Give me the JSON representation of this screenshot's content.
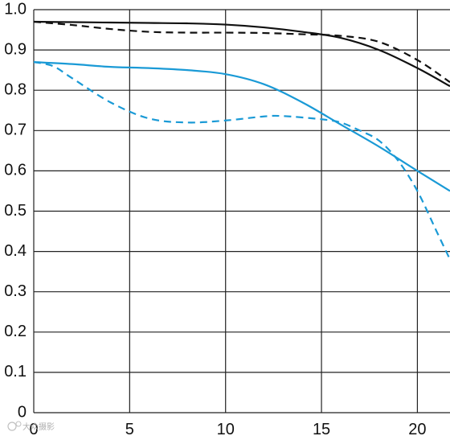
{
  "chart_data": {
    "type": "line",
    "title": "",
    "xlabel": "",
    "ylabel": "",
    "xlim": [
      0,
      21.7
    ],
    "ylim": [
      0,
      1.0
    ],
    "x_ticks": [
      0,
      5,
      10,
      15,
      20
    ],
    "x_tick_labels": [
      "0",
      "5",
      "10",
      "15",
      "20"
    ],
    "y_ticks": [
      0,
      0.1,
      0.2,
      0.3,
      0.4,
      0.5,
      0.6,
      0.7,
      0.8,
      0.9,
      1.0
    ],
    "y_tick_labels": [
      "0",
      "0.1",
      "0.2",
      "0.3",
      "0.4",
      "0.5",
      "0.6",
      "0.7",
      "0.8",
      "0.9",
      "1.0"
    ],
    "grid": true,
    "legend": "none",
    "series": [
      {
        "color": "#111111",
        "style": "solid",
        "x": [
          0,
          2,
          4,
          6,
          8,
          10,
          12,
          14,
          16,
          18,
          20,
          21.7
        ],
        "y": [
          0.97,
          0.969,
          0.968,
          0.967,
          0.966,
          0.963,
          0.956,
          0.945,
          0.93,
          0.9,
          0.855,
          0.81
        ]
      },
      {
        "color": "#111111",
        "style": "dashed",
        "x": [
          0,
          2,
          4,
          6,
          8,
          10,
          12,
          14,
          16,
          18,
          20,
          21.7
        ],
        "y": [
          0.97,
          0.962,
          0.952,
          0.945,
          0.943,
          0.943,
          0.942,
          0.939,
          0.935,
          0.92,
          0.875,
          0.82
        ]
      },
      {
        "color": "#1a9ad6",
        "style": "solid",
        "x": [
          0,
          2,
          4,
          6,
          8,
          10,
          12,
          14,
          16,
          18,
          20,
          21.7
        ],
        "y": [
          0.87,
          0.865,
          0.858,
          0.855,
          0.85,
          0.84,
          0.815,
          0.77,
          0.715,
          0.66,
          0.6,
          0.55
        ]
      },
      {
        "color": "#1a9ad6",
        "style": "dashed",
        "x": [
          0,
          1,
          2,
          4,
          6,
          8,
          10,
          12,
          13,
          15,
          16,
          17,
          18,
          19,
          20,
          21,
          21.7
        ],
        "y": [
          0.87,
          0.86,
          0.83,
          0.77,
          0.73,
          0.72,
          0.725,
          0.735,
          0.736,
          0.728,
          0.72,
          0.7,
          0.675,
          0.625,
          0.55,
          0.45,
          0.38
        ]
      }
    ]
  },
  "watermark": {
    "text": "大众摄影"
  }
}
